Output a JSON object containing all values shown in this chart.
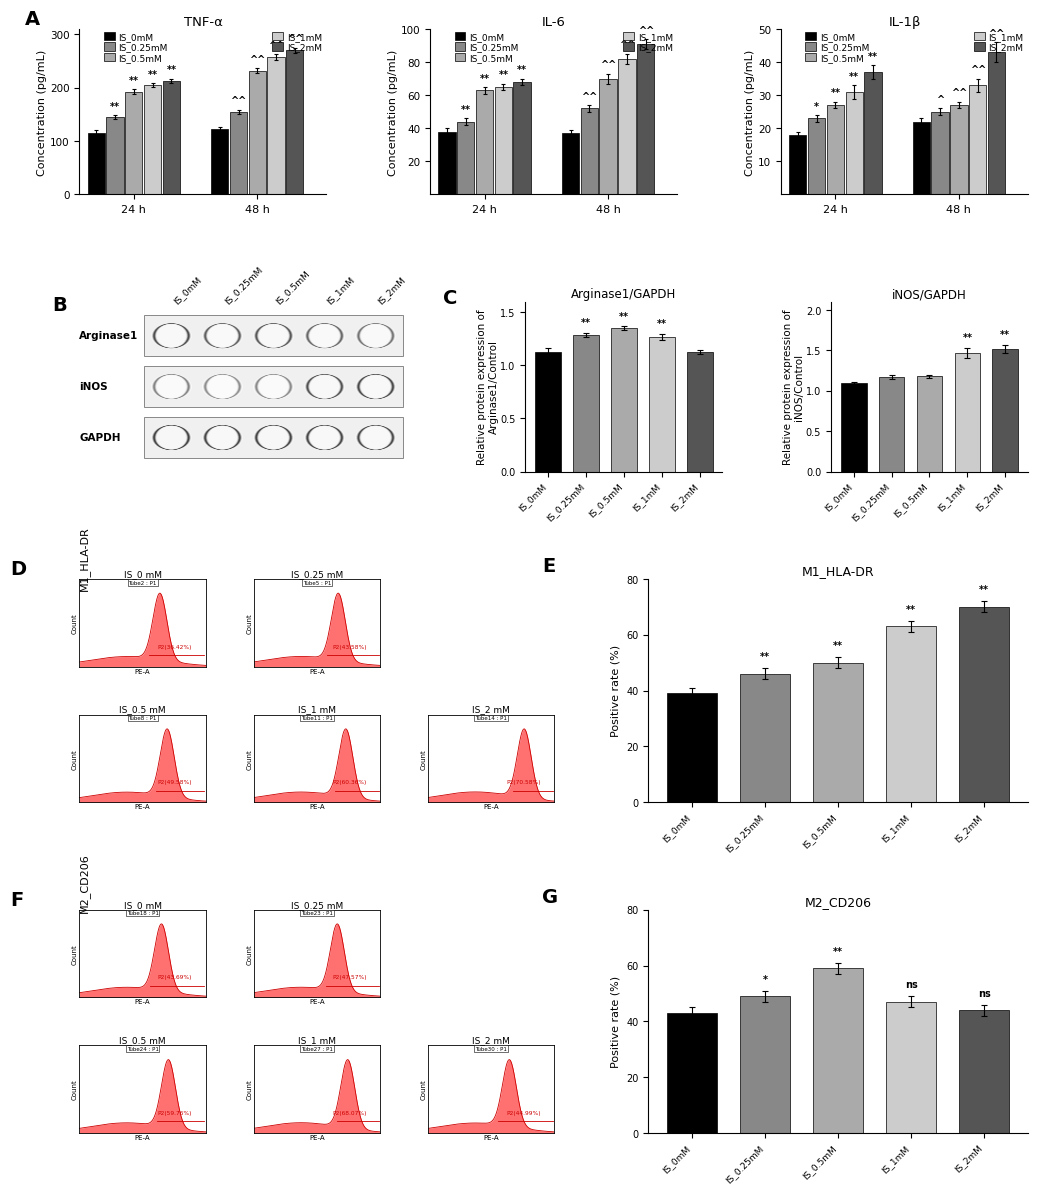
{
  "panel_A": {
    "TNFa": {
      "title": "TNF-α",
      "ylabel": "Concentration (pg/mL)",
      "ylim": [
        0,
        310
      ],
      "yticks": [
        0,
        100,
        200,
        300
      ],
      "groups": [
        "24 h",
        "48 h"
      ],
      "values_24h": [
        115,
        145,
        193,
        205,
        213
      ],
      "values_48h": [
        122,
        155,
        232,
        258,
        270
      ],
      "errors_24h": [
        5,
        4,
        4,
        4,
        4
      ],
      "errors_48h": [
        4,
        4,
        5,
        5,
        5
      ],
      "sig_24h": [
        "",
        "**",
        "**",
        "**",
        "**"
      ],
      "sig_48h": [
        "",
        "^^",
        "^^",
        "^^",
        "^^"
      ]
    },
    "IL6": {
      "title": "IL-6",
      "ylabel": "Concentration (pg/mL)",
      "ylim": [
        0,
        100
      ],
      "yticks": [
        20,
        40,
        60,
        80,
        100
      ],
      "groups": [
        "24 h",
        "48 h"
      ],
      "values_24h": [
        38,
        44,
        63,
        65,
        68
      ],
      "values_48h": [
        37,
        52,
        70,
        82,
        91
      ],
      "errors_24h": [
        2,
        2,
        2,
        2,
        2
      ],
      "errors_48h": [
        2,
        2,
        3,
        3,
        3
      ],
      "sig_24h": [
        "",
        "**",
        "**",
        "**",
        "**"
      ],
      "sig_48h": [
        "",
        "^^",
        "^^",
        "^^",
        "^^"
      ]
    },
    "IL1b": {
      "title": "IL-1β",
      "ylabel": "Concentration (pg/mL)",
      "ylim": [
        0,
        50
      ],
      "yticks": [
        10,
        20,
        30,
        40,
        50
      ],
      "groups": [
        "24 h",
        "48 h"
      ],
      "values_24h": [
        18,
        23,
        27,
        31,
        37
      ],
      "values_48h": [
        22,
        25,
        27,
        33,
        43
      ],
      "errors_24h": [
        1,
        1,
        1,
        2,
        2
      ],
      "errors_48h": [
        1,
        1,
        1,
        2,
        3
      ],
      "sig_24h": [
        "",
        "*",
        "**",
        "**",
        "**"
      ],
      "sig_48h": [
        "",
        "^",
        "^^",
        "^^",
        "^^"
      ]
    },
    "bar_colors": [
      "#000000",
      "#888888",
      "#aaaaaa",
      "#cccccc",
      "#555555"
    ],
    "legend_labels": [
      "IS_0mM",
      "IS_0.25mM",
      "IS_0.5mM",
      "IS_1mM",
      "IS_2mM"
    ]
  },
  "panel_C": {
    "Arg1": {
      "title": "Arginase1/GAPDH",
      "ylabel": "Relative protein expression of\nArginase1/Control",
      "ylim": [
        0.0,
        1.6
      ],
      "yticks": [
        0.0,
        0.5,
        1.0,
        1.5
      ],
      "categories": [
        "IS_0mM",
        "IS_0.25mM",
        "IS_0.5mM",
        "IS_1mM",
        "IS_2mM"
      ],
      "values": [
        1.13,
        1.29,
        1.35,
        1.27,
        1.13
      ],
      "errors": [
        0.03,
        0.02,
        0.02,
        0.03,
        0.02
      ],
      "sig": [
        "",
        "**",
        "**",
        "**",
        ""
      ]
    },
    "iNOS": {
      "title": "iNOS/GAPDH",
      "ylabel": "Relative protein expression of\niNOS/Control",
      "ylim": [
        0.0,
        2.1
      ],
      "yticks": [
        0.0,
        0.5,
        1.0,
        1.5,
        2.0
      ],
      "categories": [
        "IS_0mM",
        "IS_0.25mM",
        "IS_0.5mM",
        "IS_1mM",
        "IS_2mM"
      ],
      "values": [
        1.09,
        1.17,
        1.18,
        1.47,
        1.52
      ],
      "errors": [
        0.02,
        0.02,
        0.02,
        0.06,
        0.05
      ],
      "sig": [
        "",
        "",
        "",
        "**",
        "**"
      ]
    },
    "bar_colors": [
      "#000000",
      "#888888",
      "#aaaaaa",
      "#cccccc",
      "#555555"
    ]
  },
  "panel_E": {
    "title": "M1_HLA-DR",
    "ylabel": "Positive rate (%)",
    "ylim": [
      0,
      80
    ],
    "yticks": [
      0,
      20,
      40,
      60,
      80
    ],
    "categories": [
      "IS_0mM",
      "IS_0.25mM",
      "IS_0.5mM",
      "IS_1mM",
      "IS_2mM"
    ],
    "values": [
      39,
      46,
      50,
      63,
      70
    ],
    "errors": [
      2,
      2,
      2,
      2,
      2
    ],
    "sig": [
      "",
      "**",
      "**",
      "**",
      "**"
    ],
    "bar_colors": [
      "#000000",
      "#888888",
      "#aaaaaa",
      "#cccccc",
      "#555555"
    ]
  },
  "panel_G": {
    "title": "M2_CD206",
    "ylabel": "Positive rate (%)",
    "ylim": [
      0,
      80
    ],
    "yticks": [
      0,
      20,
      40,
      60,
      80
    ],
    "categories": [
      "IS_0mM",
      "IS_0.25mM",
      "IS_0.5mM",
      "IS_1mM",
      "IS_2mM"
    ],
    "values": [
      43,
      49,
      59,
      47,
      44
    ],
    "errors": [
      2,
      2,
      2,
      2,
      2
    ],
    "sig": [
      "",
      "*",
      "**",
      "ns",
      "ns"
    ],
    "bar_colors": [
      "#000000",
      "#888888",
      "#aaaaaa",
      "#cccccc",
      "#555555"
    ]
  },
  "facs_D_labels": [
    "IS_0 mM",
    "IS_0.25 mM",
    "IS_0.5 mM",
    "IS_1 mM",
    "IS_2 mM"
  ],
  "facs_D_tube": [
    "Tube2 : P1",
    "Tube5 : P1",
    "Tube8 : P1",
    "Tube11 : P1",
    "Tube14 : P1"
  ],
  "facs_D_pct": [
    "P2(36.42%)",
    "P2(43.58%)",
    "P2(49.58%)",
    "P2(60.36%)",
    "P2(70.58%)"
  ],
  "facs_F_labels": [
    "IS_0 mM",
    "IS_0.25 mM",
    "IS_0.5 mM",
    "IS_1 mM",
    "IS_2 mM"
  ],
  "facs_F_tube": [
    "Tube18 : P1",
    "Tube23 : P1",
    "Tube24 : P1",
    "Tube27 : P1",
    "Tube30 : P1"
  ],
  "facs_F_pct": [
    "P2(43.69%)",
    "P2(47.57%)",
    "P2(59.76%)",
    "P2(68.07%)",
    "P2(44.99%)"
  ],
  "blot_labels": [
    "Arginase1",
    "iNOS",
    "GAPDH"
  ],
  "lane_labels": [
    "IS_0mM",
    "IS_0.25mM",
    "IS_0.5mM",
    "IS_1mM",
    "IS_2mM"
  ],
  "blot_intensities": {
    "Arginase1": [
      0.8,
      0.72,
      0.75,
      0.68,
      0.62
    ],
    "iNOS": [
      0.55,
      0.5,
      0.52,
      0.78,
      0.82
    ],
    "GAPDH": [
      0.85,
      0.83,
      0.84,
      0.83,
      0.82
    ]
  }
}
